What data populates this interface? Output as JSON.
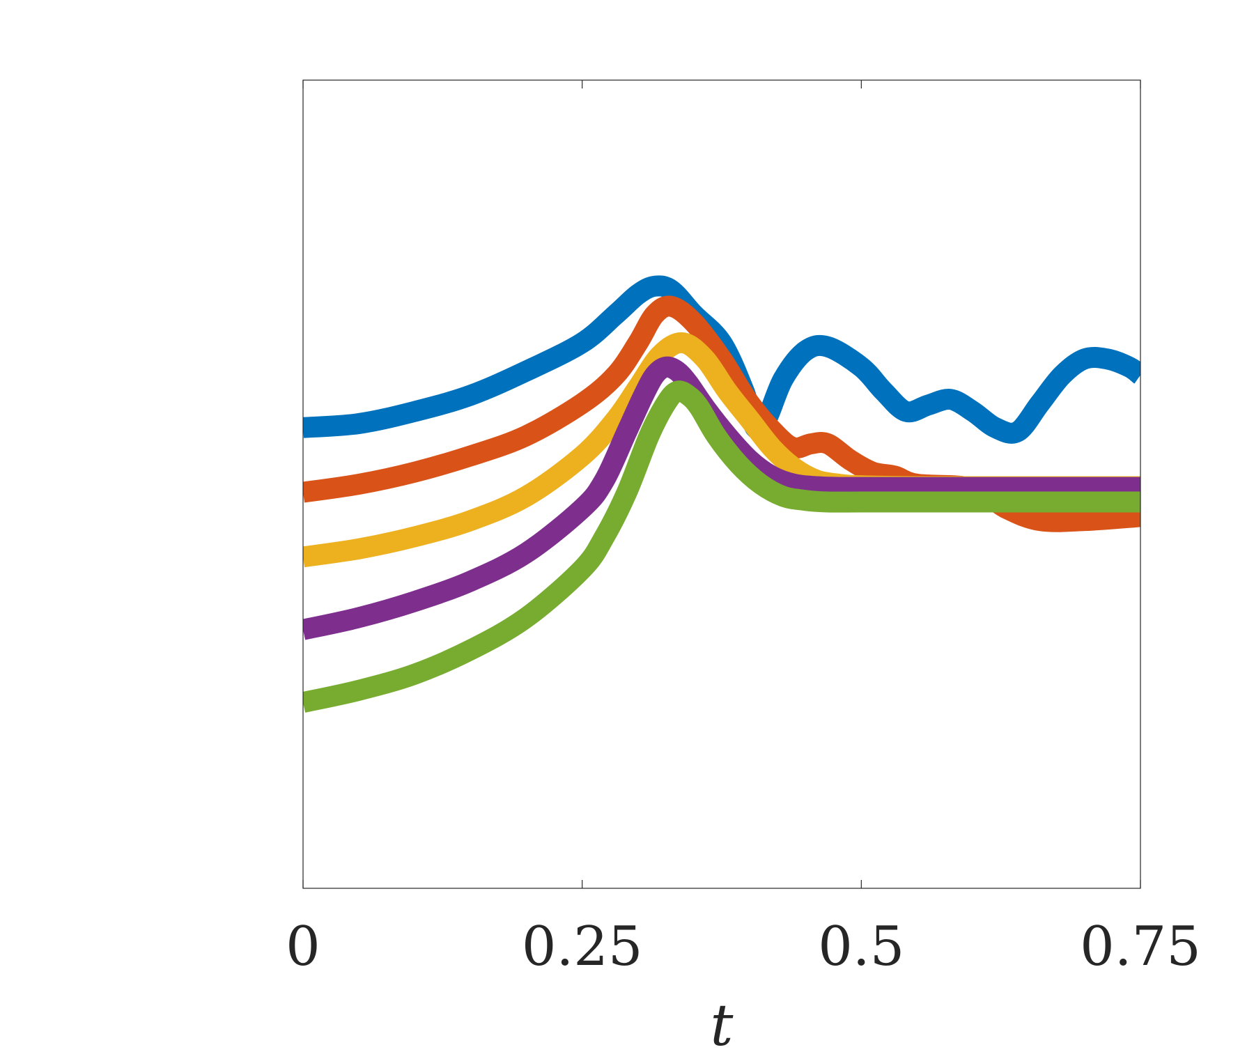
{
  "chart_data": {
    "type": "line",
    "title": "",
    "xlabel": "t",
    "ylabel": "",
    "xlim": [
      0,
      0.75
    ],
    "ylim": [
      0,
      1
    ],
    "grid": false,
    "legend": "none",
    "x_ticks": [
      0,
      0.25,
      0.5,
      0.75
    ],
    "x_tick_labels": [
      "0",
      "0.25",
      "0.5",
      "0.75"
    ],
    "y_ticks": [],
    "series": [
      {
        "color": "#0072BD",
        "x": [
          0,
          0.05,
          0.1,
          0.15,
          0.2,
          0.25,
          0.28,
          0.3,
          0.315,
          0.33,
          0.35,
          0.375,
          0.395,
          0.405,
          0.415,
          0.43,
          0.45,
          0.47,
          0.5,
          0.52,
          0.54,
          0.56,
          0.58,
          0.6,
          0.62,
          0.64,
          0.66,
          0.68,
          0.7,
          0.72,
          0.74,
          0.75
        ],
        "y": [
          0.57,
          0.575,
          0.59,
          0.61,
          0.64,
          0.675,
          0.71,
          0.735,
          0.745,
          0.74,
          0.71,
          0.675,
          0.615,
          0.57,
          0.58,
          0.63,
          0.665,
          0.67,
          0.645,
          0.615,
          0.59,
          0.598,
          0.605,
          0.59,
          0.57,
          0.565,
          0.6,
          0.635,
          0.655,
          0.655,
          0.645,
          0.635
        ]
      },
      {
        "color": "#D95319",
        "x": [
          0,
          0.05,
          0.1,
          0.15,
          0.2,
          0.25,
          0.28,
          0.3,
          0.315,
          0.33,
          0.35,
          0.375,
          0.4,
          0.425,
          0.44,
          0.455,
          0.47,
          0.49,
          0.51,
          0.53,
          0.55,
          0.6,
          0.63,
          0.66,
          0.7,
          0.75
        ],
        "y": [
          0.49,
          0.5,
          0.515,
          0.535,
          0.56,
          0.6,
          0.635,
          0.675,
          0.71,
          0.72,
          0.7,
          0.655,
          0.6,
          0.56,
          0.545,
          0.55,
          0.55,
          0.53,
          0.515,
          0.51,
          0.5,
          0.495,
          0.47,
          0.455,
          0.455,
          0.46
        ]
      },
      {
        "color": "#EDB120",
        "x": [
          0,
          0.05,
          0.1,
          0.15,
          0.2,
          0.25,
          0.28,
          0.3,
          0.32,
          0.34,
          0.36,
          0.38,
          0.4,
          0.42,
          0.44,
          0.46,
          0.48,
          0.5,
          0.55,
          0.6,
          0.65,
          0.7,
          0.75
        ],
        "y": [
          0.41,
          0.42,
          0.435,
          0.455,
          0.485,
          0.535,
          0.58,
          0.62,
          0.66,
          0.675,
          0.655,
          0.615,
          0.58,
          0.545,
          0.52,
          0.505,
          0.5,
          0.498,
          0.497,
          0.497,
          0.497,
          0.497,
          0.497
        ]
      },
      {
        "color": "#7E2F8E",
        "x": [
          0,
          0.05,
          0.1,
          0.15,
          0.2,
          0.25,
          0.27,
          0.29,
          0.305,
          0.315,
          0.325,
          0.335,
          0.345,
          0.36,
          0.38,
          0.4,
          0.42,
          0.44,
          0.46,
          0.48,
          0.5,
          0.55,
          0.6,
          0.65,
          0.7,
          0.75
        ],
        "y": [
          0.32,
          0.335,
          0.355,
          0.38,
          0.415,
          0.47,
          0.505,
          0.565,
          0.61,
          0.635,
          0.645,
          0.64,
          0.625,
          0.595,
          0.56,
          0.53,
          0.51,
          0.5,
          0.497,
          0.496,
          0.496,
          0.496,
          0.496,
          0.496,
          0.496,
          0.496
        ]
      },
      {
        "color": "#77AC30",
        "x": [
          0,
          0.05,
          0.1,
          0.15,
          0.2,
          0.25,
          0.27,
          0.29,
          0.31,
          0.325,
          0.335,
          0.345,
          0.355,
          0.37,
          0.39,
          0.41,
          0.43,
          0.45,
          0.47,
          0.5,
          0.55,
          0.6,
          0.65,
          0.7,
          0.75
        ],
        "y": [
          0.23,
          0.245,
          0.265,
          0.295,
          0.335,
          0.395,
          0.435,
          0.49,
          0.56,
          0.6,
          0.615,
          0.61,
          0.595,
          0.56,
          0.525,
          0.5,
          0.485,
          0.48,
          0.478,
          0.478,
          0.478,
          0.478,
          0.478,
          0.478,
          0.478
        ]
      }
    ]
  }
}
